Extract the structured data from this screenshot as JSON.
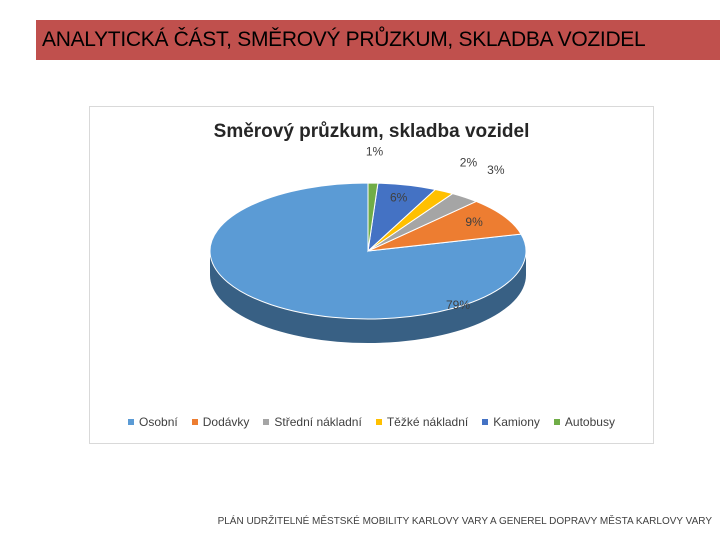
{
  "header": {
    "title": "ANALYTICKÁ ČÁST, SMĚROVÝ PRŮZKUM, SKLADBA VOZIDEL"
  },
  "footer": {
    "text": "PLÁN UDRŽITELNÉ MĚSTSKÉ MOBILITY KARLOVY VARY A GENEREL DOPRAVY MĚSTA KARLOVY VARY"
  },
  "colors": {
    "title_bar": "#c0504d"
  },
  "chart_data": {
    "type": "pie",
    "title": "Směrový průzkum, skladba vozidel",
    "legend_position": "bottom",
    "three_d": true,
    "slices": [
      {
        "label": "Osobní",
        "value": 79,
        "value_label": "79%",
        "color": "#5b9bd5"
      },
      {
        "label": "Dodávky",
        "value": 9,
        "value_label": "9%",
        "color": "#ed7d31"
      },
      {
        "label": "Střední nákladní",
        "value": 3,
        "value_label": "3%",
        "color": "#a5a5a5"
      },
      {
        "label": "Těžké nákladní",
        "value": 2,
        "value_label": "2%",
        "color": "#ffc000"
      },
      {
        "label": "Kamiony",
        "value": 6,
        "value_label": "6%",
        "color": "#4472c4"
      },
      {
        "label": "Autobusy",
        "value": 1,
        "value_label": "1%",
        "color": "#70ad47"
      }
    ]
  }
}
